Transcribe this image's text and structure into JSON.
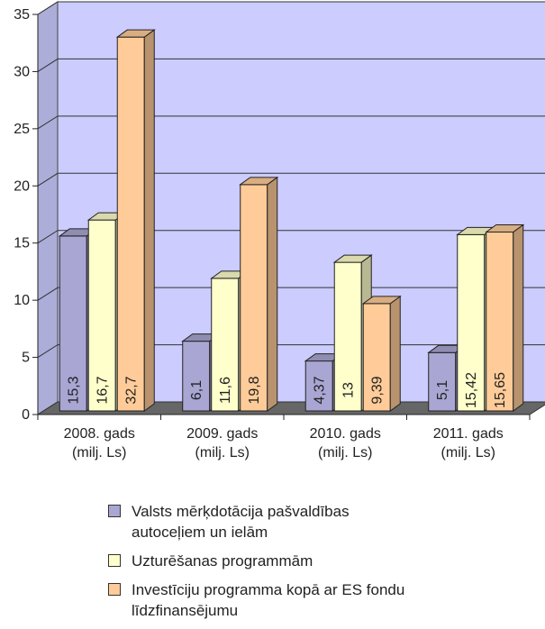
{
  "chart_data": {
    "type": "bar",
    "categories": [
      "2008. gads\n(milj. Ls)",
      "2009. gads\n(milj. Ls)",
      "2010. gads\n(milj. Ls)",
      "2011. gads\n(milj. Ls)"
    ],
    "series": [
      {
        "name": "Valsts mērķdotācija pašvaldības autoceļiem un ielām",
        "values": [
          15.3,
          6.1,
          4.37,
          5.1
        ],
        "labels": [
          "15,3",
          "6,1",
          "4,37",
          "5,1"
        ],
        "color": "#a9a6d3"
      },
      {
        "name": "Uzturēšanas programmām",
        "values": [
          16.7,
          11.6,
          13,
          15.42
        ],
        "labels": [
          "16,7",
          "11,6",
          "13",
          "15,42"
        ],
        "color": "#ffffcc"
      },
      {
        "name": "Investīciju programma kopā ar ES fondu līdzfinansējumu",
        "values": [
          32.7,
          19.8,
          9.39,
          15.65
        ],
        "labels": [
          "32,7",
          "19,8",
          "9,39",
          "15,65"
        ],
        "color": "#ffcc99"
      }
    ],
    "ylim": [
      0,
      35
    ],
    "yticks": [
      "0",
      "5",
      "10",
      "15",
      "20",
      "25",
      "30",
      "35"
    ],
    "grid": true,
    "legend": "bottom",
    "wall_color": "#ccccff",
    "floor_color": "#666666"
  },
  "legend": {
    "items": [
      {
        "label": "Valsts mērķdotācija pašvaldības autoceļiem un ielām",
        "color": "#a9a6d3"
      },
      {
        "label": "Uzturēšanas programmām",
        "color": "#ffffcc"
      },
      {
        "label": "Investīciju programma kopā ar ES fondu līdzfinansējumu",
        "color": "#ffcc99"
      }
    ]
  }
}
